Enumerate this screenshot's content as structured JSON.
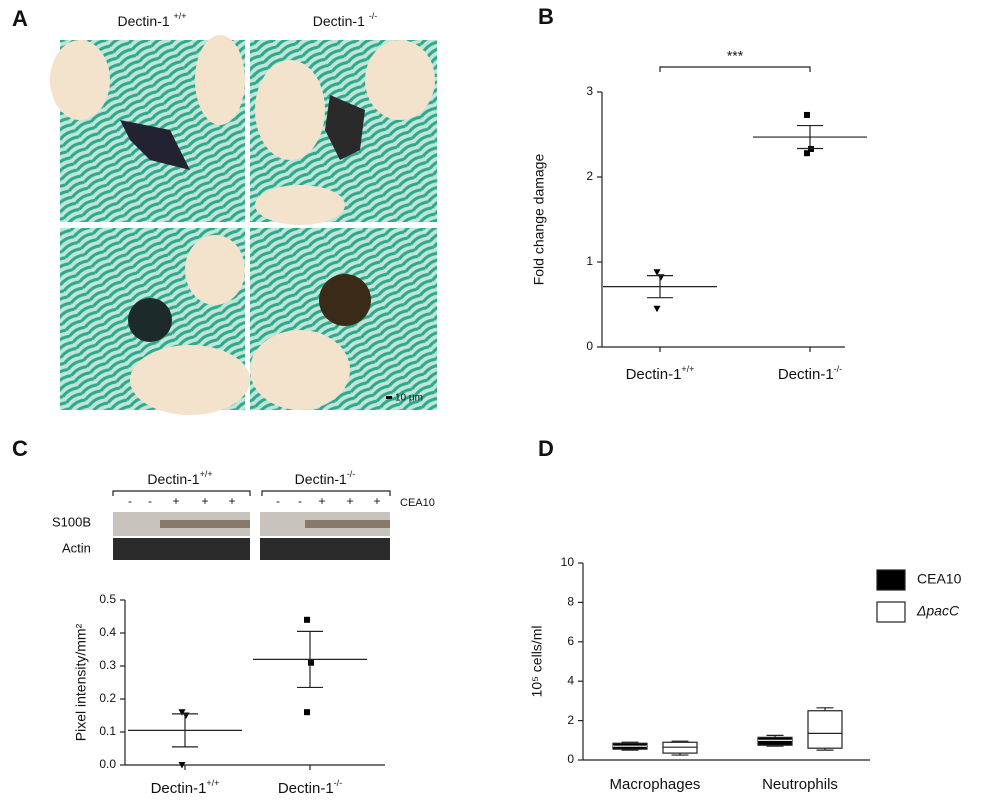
{
  "panel_labels": [
    "A",
    "B",
    "C",
    "D"
  ],
  "panel_a": {
    "headers": [
      "Dectin-1 +/+",
      "Dectin-1 -/-"
    ],
    "scale_bar": "10 μm"
  },
  "blot": {
    "groups": [
      "Dectin-1+/+",
      "Dectin-1-/-"
    ],
    "lanes": [
      [
        "-",
        "-",
        "+",
        "+",
        "+"
      ],
      [
        "-",
        "-",
        "+",
        "+",
        "+"
      ]
    ],
    "treatment": "CEA10",
    "rows": [
      "S100B",
      "Actin"
    ]
  },
  "chart_data": [
    {
      "type": "dotplot",
      "ylabel": "Fold change damage",
      "categories": [
        "Dectin-1+/+",
        "Dectin-1-/-"
      ],
      "markers": [
        "triangle-down",
        "square"
      ],
      "points": [
        [
          0.88,
          0.82,
          0.45
        ],
        [
          2.73,
          2.33,
          2.28
        ]
      ],
      "mean": [
        0.71,
        2.47
      ],
      "sem": [
        0.13,
        0.135
      ],
      "color": "#000000",
      "ylim": [
        0,
        3
      ],
      "yticks": [
        0,
        1,
        2,
        3
      ],
      "significance": "***"
    },
    {
      "type": "dotplot",
      "ylabel": "Pixel intensity/mm²",
      "categories": [
        "Dectin-1+/+",
        "Dectin-1-/-"
      ],
      "markers": [
        "triangle-down",
        "square"
      ],
      "points": [
        [
          0.16,
          0.15,
          0.0
        ],
        [
          0.44,
          0.31,
          0.16
        ]
      ],
      "mean": [
        0.105,
        0.32
      ],
      "sem": [
        0.05,
        0.085
      ],
      "color": "#000000",
      "ylim": [
        0,
        0.5
      ],
      "yticks": [
        {
          "value": 0,
          "label": "0.0"
        },
        0.1,
        0.2,
        0.3,
        0.4,
        0.5
      ]
    },
    {
      "type": "box",
      "ylabel": "10⁵ cells/ml",
      "categories": [
        "Macrophages",
        "Neutrophils"
      ],
      "legend": "right",
      "series": [
        {
          "name": "CEA10",
          "color": "#000000",
          "font_style": "normal",
          "boxes": [
            {
              "min": 0.5,
              "q1": 0.55,
              "median": 0.7,
              "q3": 0.85,
              "max": 0.9
            },
            {
              "min": 0.7,
              "q1": 0.75,
              "median": 1.0,
              "q3": 1.15,
              "max": 1.25
            }
          ]
        },
        {
          "name": "ΔpacC",
          "color": "#ffffff",
          "font_style": "italic",
          "boxes": [
            {
              "min": 0.25,
              "q1": 0.35,
              "median": 0.65,
              "q3": 0.9,
              "max": 0.95
            },
            {
              "min": 0.5,
              "q1": 0.6,
              "median": 1.35,
              "q3": 2.5,
              "max": 2.65
            }
          ]
        }
      ],
      "ylim": [
        0,
        10
      ],
      "yticks": [
        0,
        2,
        4,
        6,
        8,
        10
      ]
    }
  ]
}
